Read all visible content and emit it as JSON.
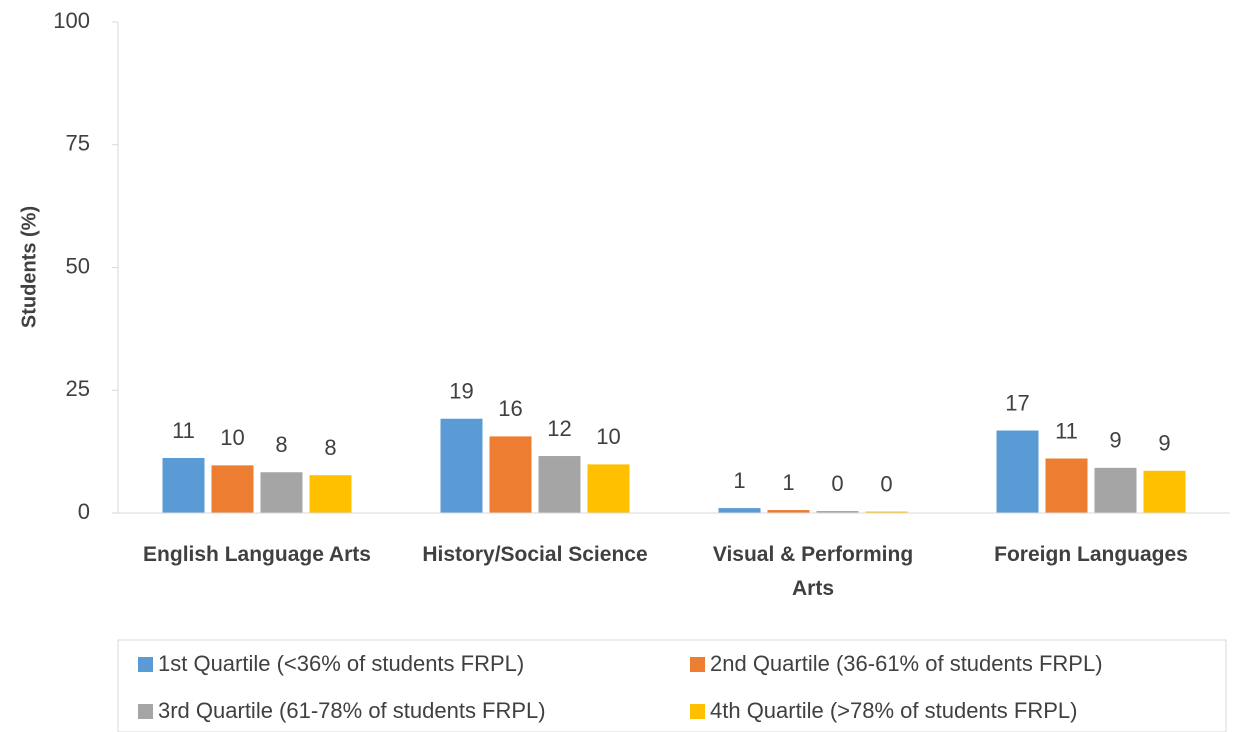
{
  "chart_data": {
    "type": "bar",
    "y_axis_label": "Students (%)",
    "categories": [
      "English Language Arts",
      "History/Social Science",
      "Visual & Performing Arts",
      "Foreign Languages"
    ],
    "series": [
      {
        "name": "1st Quartile (<36% of students FRPL)",
        "color": "#5b9bd5",
        "values": [
          11.2,
          19.2,
          1.0,
          16.8
        ],
        "value_labels": [
          "11",
          "19",
          "1",
          "17"
        ]
      },
      {
        "name": "2nd Quartile (36-61% of students FRPL)",
        "color": "#ed7d31",
        "values": [
          9.7,
          15.6,
          0.6,
          11.1
        ],
        "value_labels": [
          "10",
          "16",
          "1",
          "11"
        ]
      },
      {
        "name": "3rd Quartile (61-78% of students FRPL)",
        "color": "#a5a5a5",
        "values": [
          8.3,
          11.6,
          0.4,
          9.2
        ],
        "value_labels": [
          "8",
          "12",
          "0",
          "9"
        ]
      },
      {
        "name": "4th Quartile (>78% of students FRPL)",
        "color": "#ffc000",
        "values": [
          7.7,
          9.9,
          0.3,
          8.6
        ],
        "value_labels": [
          "8",
          "10",
          "0",
          "9"
        ]
      }
    ],
    "ylim": [
      0,
      100
    ],
    "yticks": [
      0,
      25,
      50,
      75,
      100
    ],
    "grid": false,
    "legend": "bottom"
  }
}
